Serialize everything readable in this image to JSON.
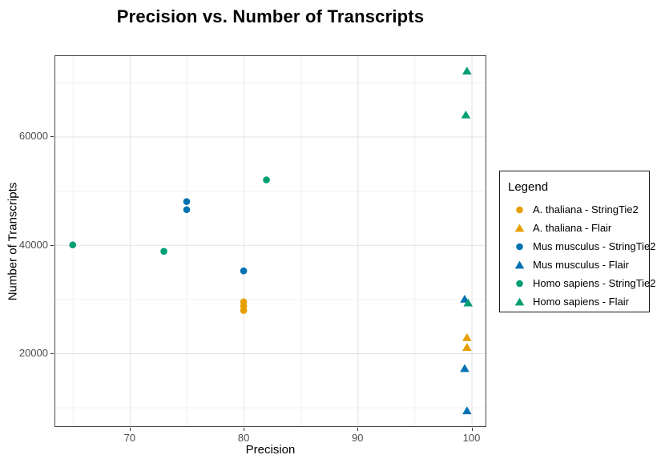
{
  "chart_data": {
    "type": "scatter",
    "title": "Precision vs. Number of Transcripts",
    "xlabel": "Precision",
    "ylabel": "Number of Transcripts",
    "xlim": [
      63.4,
      101.3
    ],
    "ylim": [
      6400,
      75000
    ],
    "x_ticks": [
      70,
      80,
      90,
      100
    ],
    "x_minor_ticks": [
      65,
      75,
      85,
      95
    ],
    "y_ticks": [
      20000,
      40000,
      60000
    ],
    "y_minor_ticks": [
      10000,
      30000,
      50000,
      70000
    ],
    "grid": true,
    "legend": {
      "title": "Legend",
      "position": "right"
    },
    "series": [
      {
        "name": "A. thaliana - StringTie2",
        "marker": "circle",
        "color": "#E69F00",
        "points": [
          [
            80,
            29500
          ],
          [
            80,
            28700
          ],
          [
            80,
            27900
          ]
        ]
      },
      {
        "name": "A. thaliana - Flair",
        "marker": "triangle",
        "color": "#E69F00",
        "points": [
          [
            99.6,
            22900
          ],
          [
            99.6,
            21100
          ]
        ]
      },
      {
        "name": "Mus musculus - StringTie2",
        "marker": "circle",
        "color": "#0072B2",
        "points": [
          [
            75,
            48000
          ],
          [
            75,
            46500
          ],
          [
            80,
            35200
          ]
        ]
      },
      {
        "name": "Mus musculus - Flair",
        "marker": "triangle",
        "color": "#0072B2",
        "points": [
          [
            99.4,
            30000
          ],
          [
            99.4,
            17200
          ],
          [
            99.6,
            9400
          ]
        ]
      },
      {
        "name": "Homo sapiens - StringTie2",
        "marker": "circle",
        "color": "#009E73",
        "points": [
          [
            65,
            40000
          ],
          [
            73,
            38800
          ],
          [
            82,
            52000
          ]
        ]
      },
      {
        "name": "Homo sapiens - Flair",
        "marker": "triangle",
        "color": "#009E73",
        "points": [
          [
            99.6,
            72100
          ],
          [
            99.5,
            64000
          ],
          [
            99.7,
            29300
          ]
        ]
      }
    ]
  },
  "colors": {
    "background": "#ffffff",
    "panel_border": "#4a4a4a",
    "grid_major": "#e3e3e3",
    "grid_minor": "#f1f1f1",
    "tick": "#333333",
    "tick_label": "#4d4d4d"
  }
}
